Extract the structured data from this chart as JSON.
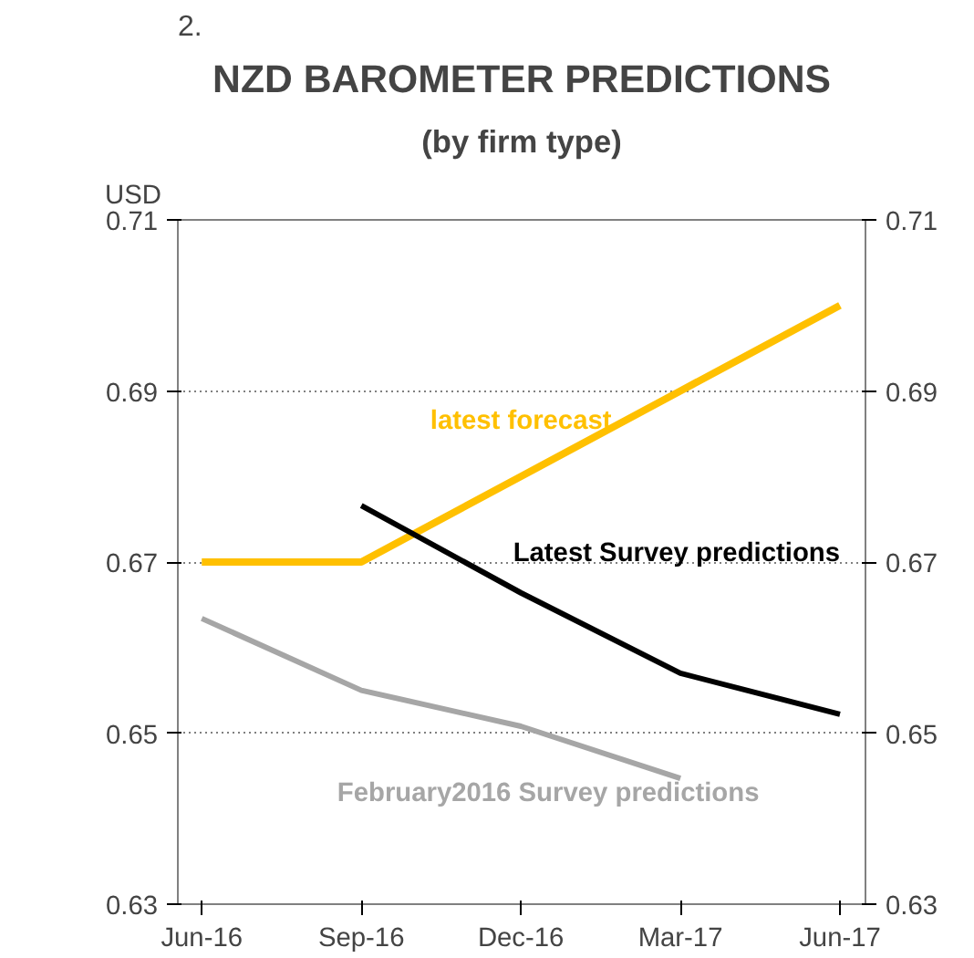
{
  "chart_data": {
    "type": "line",
    "title": "NZD BAROMETER PREDICTIONS",
    "subtitle": "(by firm type)",
    "ylabel": "USD",
    "annotations": [
      "2."
    ],
    "categories": [
      "Jun-16",
      "Sep-16",
      "Dec-16",
      "Mar-17",
      "Jun-17"
    ],
    "series": [
      {
        "name": "latest forecast",
        "color": "#ffc000",
        "values": [
          0.67,
          0.67,
          0.68,
          0.69,
          0.7
        ]
      },
      {
        "name": "Latest Survey predictions",
        "color": "#000000",
        "values": [
          null,
          0.6766,
          0.6664,
          0.657,
          0.6522
        ]
      },
      {
        "name": "February2016 Survey predictions",
        "color": "#a6a6a6",
        "values": [
          0.6634,
          0.655,
          0.6508,
          0.6447,
          null
        ]
      }
    ],
    "ylim": [
      0.63,
      0.71
    ],
    "yticks": [
      0.63,
      0.65,
      0.67,
      0.69,
      0.71
    ],
    "y2lim": [
      0.63,
      0.71
    ],
    "y2ticks": [
      0.63,
      0.65,
      0.67,
      0.69,
      0.71
    ],
    "grid": "y",
    "marker": "none",
    "line_style": "solid"
  }
}
